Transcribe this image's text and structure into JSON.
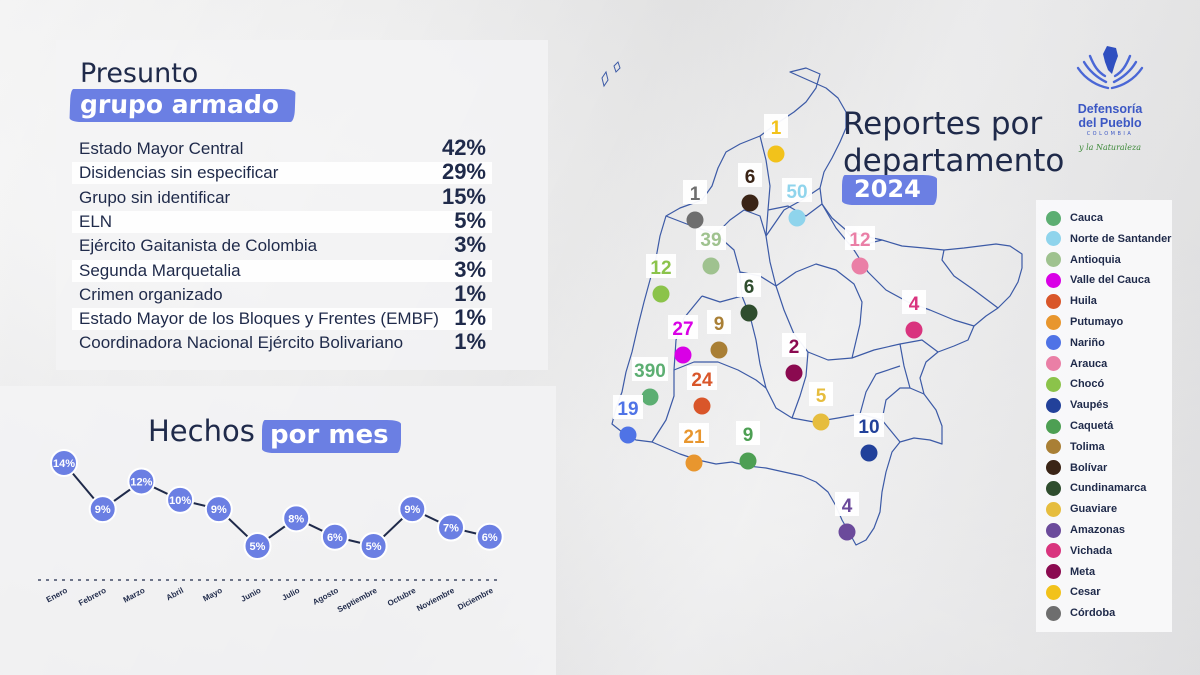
{
  "logo": {
    "name_line1": "Defensoría",
    "name_line2": "del Pueblo",
    "country": "COLOMBIA",
    "tagline": "y la Naturaleza"
  },
  "groups": {
    "title_line1": "Presunto",
    "title_line2": "grupo armado",
    "items": [
      {
        "label": "Estado Mayor Central",
        "value": "42%"
      },
      {
        "label": "Disidencias sin especificar",
        "value": "29%"
      },
      {
        "label": "Grupo sin identificar",
        "value": "15%"
      },
      {
        "label": "ELN",
        "value": "5%"
      },
      {
        "label": "Ejército Gaitanista de Colombia",
        "value": "3%"
      },
      {
        "label": "Segunda Marquetalia",
        "value": "3%"
      },
      {
        "label": "Crimen organizado",
        "value": "1%"
      },
      {
        "label": "Estado Mayor de los Bloques y Frentes (EMBF)",
        "value": "1%"
      },
      {
        "label": "Coordinadora Nacional Ejército Bolivariano",
        "value": "1%"
      }
    ]
  },
  "monthly": {
    "title_part1": "Hechos",
    "title_part2": "por mes"
  },
  "map": {
    "title_line1": "Reportes por",
    "title_line2": "departamento",
    "year": "2024"
  },
  "chart_data": [
    {
      "type": "bar",
      "title": "Presunto grupo armado",
      "categories": [
        "Estado Mayor Central",
        "Disidencias sin especificar",
        "Grupo sin identificar",
        "ELN",
        "Ejército Gaitanista de Colombia",
        "Segunda Marquetalia",
        "Crimen organizado",
        "Estado Mayor de los Bloques y Frentes (EMBF)",
        "Coordinadora Nacional Ejército Bolivariano"
      ],
      "values": [
        42,
        29,
        15,
        5,
        3,
        3,
        1,
        1,
        1
      ],
      "unit": "%"
    },
    {
      "type": "line",
      "title": "Hechos por mes",
      "categories": [
        "Enero",
        "Febrero",
        "Marzo",
        "Abril",
        "Mayo",
        "Junio",
        "Julio",
        "Agosto",
        "Septiembre",
        "Octubre",
        "Noviembre",
        "Diciembre"
      ],
      "values": [
        14,
        9,
        12,
        10,
        9,
        5,
        8,
        6,
        5,
        9,
        7,
        6
      ],
      "labels": [
        "14%",
        "9%",
        "12%",
        "10%",
        "9%",
        "5%",
        "8%",
        "6%",
        "5%",
        "9%",
        "7%",
        "6%"
      ],
      "ylim": [
        5,
        14
      ]
    },
    {
      "type": "table",
      "title": "Reportes por departamento 2024",
      "departments": [
        {
          "name": "Cauca",
          "value": 390,
          "color": "#5cae72"
        },
        {
          "name": "Norte de Santander",
          "value": 50,
          "color": "#8fd4ec"
        },
        {
          "name": "Antioquia",
          "value": 39,
          "color": "#9fc28f"
        },
        {
          "name": "Valle del Cauca",
          "value": 27,
          "color": "#d900e6"
        },
        {
          "name": "Huila",
          "value": 24,
          "color": "#d9562a"
        },
        {
          "name": "Putumayo",
          "value": 21,
          "color": "#e8962e"
        },
        {
          "name": "Nariño",
          "value": 19,
          "color": "#4f73e6"
        },
        {
          "name": "Arauca",
          "value": 12,
          "color": "#ea7fa6"
        },
        {
          "name": "Chocó",
          "value": 12,
          "color": "#8bc34a"
        },
        {
          "name": "Vaupés",
          "value": 10,
          "color": "#22419a"
        },
        {
          "name": "Caquetá",
          "value": 9,
          "color": "#4d9f53"
        },
        {
          "name": "Tolima",
          "value": 9,
          "color": "#a97f35"
        },
        {
          "name": "Bolívar",
          "value": 6,
          "color": "#3a2416"
        },
        {
          "name": "Cundinamarca",
          "value": 6,
          "color": "#2f4d2e"
        },
        {
          "name": "Guaviare",
          "value": 5,
          "color": "#e6bd3e"
        },
        {
          "name": "Amazonas",
          "value": 4,
          "color": "#6b4a9b"
        },
        {
          "name": "Vichada",
          "value": 4,
          "color": "#d9347e"
        },
        {
          "name": "Meta",
          "value": 2,
          "color": "#8b0a50"
        },
        {
          "name": "Cesar",
          "value": 1,
          "color": "#f2c21b"
        },
        {
          "name": "Córdoba",
          "value": 1,
          "color": "#6e6e6e"
        }
      ]
    }
  ]
}
